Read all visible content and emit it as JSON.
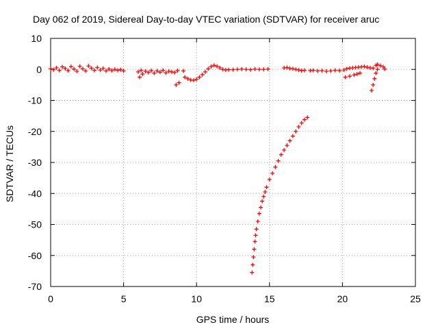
{
  "chart_data": {
    "type": "scatter",
    "title": "Day 062 of 2019, Sidereal Day-to-day VTEC variation (SDTVAR) for receiver aruc",
    "xlabel": "GPS time / hours",
    "ylabel": "SDTVAR / TECUs",
    "xlim": [
      0,
      25
    ],
    "ylim": [
      -70,
      10
    ],
    "xticks": [
      0,
      5,
      10,
      15,
      20,
      25
    ],
    "yticks": [
      -70,
      -60,
      -50,
      -40,
      -30,
      -20,
      -10,
      0,
      10
    ],
    "xtick_labels": [
      "0",
      "5",
      "10",
      "15",
      "20",
      "25"
    ],
    "ytick_labels": [
      "-70",
      "-60",
      "-50",
      "-40",
      "-30",
      "-20",
      "-10",
      "0",
      "10"
    ],
    "grid": true,
    "legend": "none",
    "marker": "plus",
    "color": "#ff0000",
    "series": [
      {
        "points": [
          [
            0.0,
            0.2
          ],
          [
            0.2,
            -0.1
          ],
          [
            0.4,
            0.5
          ],
          [
            0.6,
            -0.3
          ],
          [
            0.8,
            0.8
          ],
          [
            1.0,
            0.3
          ],
          [
            1.2,
            -0.4
          ],
          [
            1.4,
            0.9
          ],
          [
            1.6,
            0.1
          ],
          [
            1.8,
            -0.6
          ],
          [
            2.0,
            1.0
          ],
          [
            2.2,
            0.2
          ],
          [
            2.4,
            -0.5
          ],
          [
            2.6,
            1.1
          ],
          [
            2.8,
            0.4
          ],
          [
            3.0,
            -0.3
          ],
          [
            3.2,
            0.6
          ],
          [
            3.4,
            -0.2
          ],
          [
            3.6,
            0.3
          ],
          [
            3.8,
            -0.5
          ],
          [
            4.0,
            0.1
          ],
          [
            4.2,
            -0.4
          ],
          [
            4.4,
            0.0
          ],
          [
            4.6,
            -0.3
          ],
          [
            4.8,
            -0.1
          ],
          [
            5.0,
            -0.5
          ],
          [
            6.0,
            -0.8
          ],
          [
            6.1,
            -2.5
          ],
          [
            6.2,
            -0.3
          ],
          [
            6.3,
            -1.5
          ],
          [
            6.5,
            -0.6
          ],
          [
            6.7,
            -1.0
          ],
          [
            6.9,
            -0.4
          ],
          [
            7.1,
            -1.2
          ],
          [
            7.3,
            -0.5
          ],
          [
            7.5,
            -0.9
          ],
          [
            7.7,
            -0.3
          ],
          [
            7.9,
            -1.1
          ],
          [
            8.1,
            -0.6
          ],
          [
            8.3,
            -0.8
          ],
          [
            8.5,
            -1.0
          ],
          [
            8.7,
            -0.4
          ],
          [
            8.6,
            -5.0
          ],
          [
            8.8,
            -4.3
          ],
          [
            9.1,
            -0.5
          ],
          [
            9.2,
            -2.5
          ],
          [
            9.4,
            -3.0
          ],
          [
            9.6,
            -3.4
          ],
          [
            9.8,
            -3.5
          ],
          [
            10.0,
            -3.2
          ],
          [
            10.2,
            -2.5
          ],
          [
            10.4,
            -1.7
          ],
          [
            10.6,
            -0.8
          ],
          [
            10.8,
            0.2
          ],
          [
            11.0,
            0.9
          ],
          [
            11.2,
            1.3
          ],
          [
            11.4,
            1.0
          ],
          [
            11.6,
            0.5
          ],
          [
            11.8,
            0.0
          ],
          [
            12.0,
            -0.2
          ],
          [
            12.2,
            -0.1
          ],
          [
            12.5,
            -0.1
          ],
          [
            12.8,
            0.0
          ],
          [
            13.1,
            0.1
          ],
          [
            13.4,
            0.0
          ],
          [
            13.7,
            -0.1
          ],
          [
            14.0,
            0.1
          ],
          [
            14.3,
            0.0
          ],
          [
            14.6,
            0.0
          ],
          [
            14.9,
            0.1
          ],
          [
            16.0,
            0.5
          ],
          [
            16.2,
            0.6
          ],
          [
            16.4,
            0.3
          ],
          [
            16.6,
            0.2
          ],
          [
            16.8,
            0.0
          ],
          [
            17.0,
            -0.2
          ],
          [
            17.2,
            -0.4
          ],
          [
            17.4,
            -0.3
          ],
          [
            17.8,
            -0.4
          ],
          [
            18.0,
            -0.3
          ],
          [
            18.3,
            -0.5
          ],
          [
            18.6,
            -0.4
          ],
          [
            18.9,
            -0.6
          ],
          [
            19.2,
            -0.5
          ],
          [
            19.5,
            -0.3
          ],
          [
            19.8,
            -0.4
          ],
          [
            20.1,
            -0.2
          ],
          [
            20.3,
            0.2
          ],
          [
            20.5,
            0.4
          ],
          [
            20.7,
            0.5
          ],
          [
            20.9,
            0.6
          ],
          [
            21.1,
            0.7
          ],
          [
            21.3,
            0.8
          ],
          [
            21.5,
            0.9
          ],
          [
            21.7,
            0.7
          ],
          [
            21.9,
            0.5
          ],
          [
            20.2,
            -2.5
          ],
          [
            20.5,
            -2.2
          ],
          [
            20.8,
            -1.8
          ],
          [
            21.0,
            -1.5
          ],
          [
            21.2,
            -1.2
          ],
          [
            22.1,
            0.4
          ],
          [
            22.3,
            1.3
          ],
          [
            22.4,
            1.6
          ],
          [
            22.6,
            1.2
          ],
          [
            22.8,
            0.8
          ],
          [
            22.9,
            0.1
          ],
          [
            22.0,
            -6.8
          ],
          [
            22.1,
            -5.0
          ],
          [
            22.2,
            -3.0
          ],
          [
            22.3,
            -1.2
          ],
          [
            22.4,
            0.0
          ],
          [
            13.8,
            -65.5
          ],
          [
            13.85,
            -63.0
          ],
          [
            13.9,
            -60.5
          ],
          [
            13.95,
            -58.0
          ],
          [
            14.0,
            -55.5
          ],
          [
            14.05,
            -53.5
          ],
          [
            14.1,
            -51.5
          ],
          [
            14.2,
            -49.0
          ],
          [
            14.3,
            -46.5
          ],
          [
            14.4,
            -44.5
          ],
          [
            14.5,
            -42.5
          ],
          [
            14.6,
            -41.0
          ],
          [
            14.7,
            -39.5
          ],
          [
            14.8,
            -38.0
          ],
          [
            15.0,
            -35.5
          ],
          [
            15.2,
            -33.5
          ],
          [
            15.4,
            -31.5
          ],
          [
            15.6,
            -29.5
          ],
          [
            15.8,
            -27.5
          ],
          [
            16.0,
            -26.0
          ],
          [
            16.2,
            -24.5
          ],
          [
            16.4,
            -23.0
          ],
          [
            16.6,
            -21.5
          ],
          [
            16.8,
            -20.0
          ],
          [
            17.0,
            -18.5
          ],
          [
            17.2,
            -17.3
          ],
          [
            17.4,
            -16.2
          ],
          [
            17.6,
            -15.5
          ]
        ]
      }
    ]
  }
}
